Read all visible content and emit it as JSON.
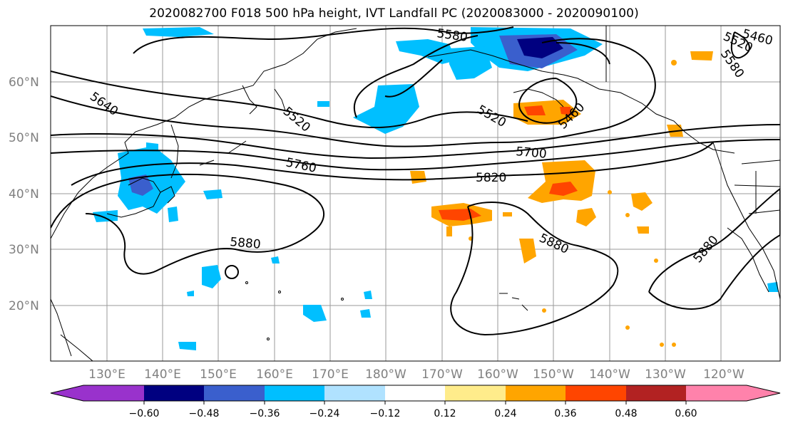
{
  "title": "2020082700 F018 500 hPa height, IVT Landfall PC (2020083000 - 2020090100)",
  "map": {
    "lat_ticks": [
      "60°N",
      "50°N",
      "40°N",
      "30°N",
      "20°N"
    ],
    "lon_ticks": [
      "130°E",
      "140°E",
      "150°E",
      "160°E",
      "170°E",
      "180°W",
      "170°W",
      "160°W",
      "150°W",
      "140°W",
      "130°W",
      "120°W"
    ],
    "contour_labels": [
      "5580",
      "5520",
      "5460",
      "5580",
      "5640",
      "5520",
      "5520",
      "5460",
      "5700",
      "5760",
      "5820",
      "5880",
      "5880",
      "5880"
    ]
  },
  "colorbar": {
    "colors": [
      "#9932cc",
      "#000080",
      "#3a5fcd",
      "#00bfff",
      "#b0e2ff",
      "#ffffff",
      "#ffec8b",
      "#ffa500",
      "#ff4500",
      "#b22222",
      "#ff82ab"
    ],
    "tick_labels": [
      "−0.60",
      "−0.48",
      "−0.36",
      "−0.24",
      "−0.12",
      "0.12",
      "0.24",
      "0.36",
      "0.48",
      "0.60"
    ]
  }
}
